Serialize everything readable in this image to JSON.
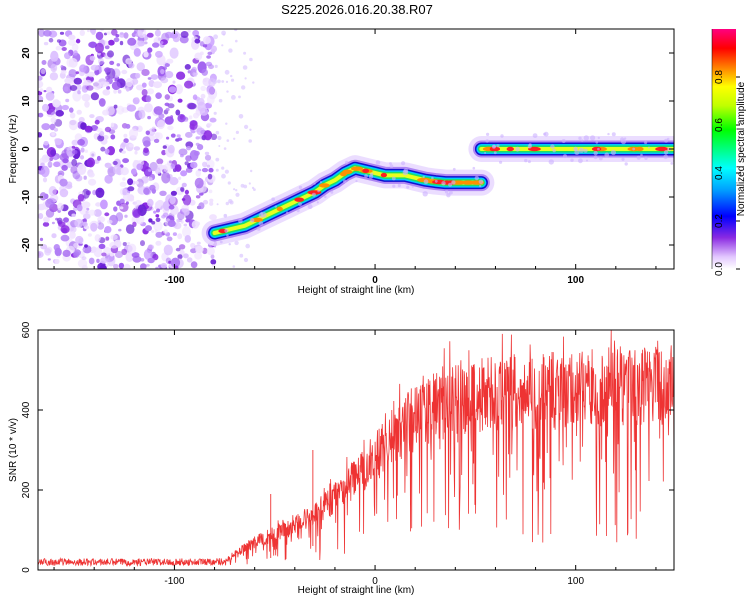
{
  "title": "S225.2026.016.20.38.R07",
  "chart_data": [
    {
      "type": "heatmap",
      "name": "spectrogram",
      "xlabel": "Height of straight line (km)",
      "ylabel": "Frequency (Hz)",
      "xlim": [
        -168,
        149
      ],
      "ylim": [
        -25,
        25
      ],
      "xticks": [
        -100,
        0,
        100
      ],
      "xtick_labels": [
        "-100",
        "0",
        "100"
      ],
      "yticks": [
        -20,
        -10,
        0,
        10,
        20
      ],
      "ytick_labels": [
        "-20",
        "-10",
        "0",
        "10",
        "20"
      ],
      "noise_region_x": [
        -168,
        -80
      ],
      "signal_track": {
        "x": [
          -80,
          -75,
          -70,
          -65,
          -60,
          -55,
          -50,
          -45,
          -40,
          -35,
          -30,
          -25,
          -20,
          -15,
          -10,
          -5,
          0,
          5,
          10,
          15,
          20,
          25,
          30,
          35,
          40,
          45,
          50,
          53
        ],
        "y": [
          -17.5,
          -17,
          -16.5,
          -16,
          -15,
          -14,
          -13,
          -12,
          -11,
          -10,
          -9,
          -7.5,
          -6.5,
          -5,
          -4,
          -4.5,
          -5,
          -5.5,
          -5.5,
          -5.5,
          -6,
          -6.5,
          -6.8,
          -7,
          -7,
          -7,
          -7,
          -7
        ]
      },
      "signal_track_2": {
        "x": [
          53,
          60,
          70,
          80,
          90,
          100,
          110,
          120,
          130,
          140,
          149
        ],
        "y": [
          0,
          0,
          0,
          0,
          0,
          0,
          0,
          0,
          0,
          0,
          0
        ]
      },
      "colorbar": {
        "label": "Normalized spectral amplitude",
        "ticks": [
          0.0,
          0.2,
          0.4,
          0.6,
          0.8
        ],
        "tick_labels": [
          "0.0",
          "0.2",
          "0.4",
          "0.6",
          "0.8"
        ],
        "range": [
          0,
          1
        ]
      }
    },
    {
      "type": "line",
      "name": "snr",
      "xlabel": "Height of straight line (km)",
      "ylabel": "SNR (10 * v/v)",
      "xlim": [
        -168,
        149
      ],
      "ylim": [
        0,
        600
      ],
      "xticks": [
        -100,
        0,
        100
      ],
      "xtick_labels": [
        "-100",
        "0",
        "100"
      ],
      "yticks": [
        0,
        200,
        400,
        600
      ],
      "ytick_labels": [
        "0",
        "200",
        "400",
        "600"
      ],
      "color": "#ee3333",
      "baseline_profile": {
        "x": [
          -168,
          -90,
          -75,
          -70,
          -60,
          -50,
          -40,
          -30,
          -20,
          -10,
          0,
          10,
          20,
          30,
          40,
          60,
          80,
          100,
          120,
          149
        ],
        "y": [
          20,
          20,
          22,
          40,
          70,
          90,
          110,
          140,
          180,
          230,
          280,
          340,
          380,
          410,
          430,
          440,
          445,
          450,
          460,
          465
        ]
      }
    }
  ]
}
